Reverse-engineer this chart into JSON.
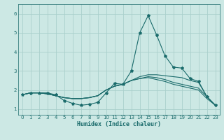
{
  "title": "",
  "xlabel": "Humidex (Indice chaleur)",
  "ylabel": "",
  "bg_color": "#cce8e4",
  "grid_color": "#aacfcb",
  "line_color": "#1a6b6b",
  "xlim": [
    -0.5,
    23.5
  ],
  "ylim": [
    0.7,
    6.5
  ],
  "xticks": [
    0,
    1,
    2,
    3,
    4,
    5,
    6,
    7,
    8,
    9,
    10,
    11,
    12,
    13,
    14,
    15,
    16,
    17,
    18,
    19,
    20,
    21,
    22,
    23
  ],
  "yticks": [
    1,
    2,
    3,
    4,
    5,
    6
  ],
  "series": [
    [
      1.75,
      1.85,
      1.85,
      1.85,
      1.75,
      1.45,
      1.3,
      1.2,
      1.25,
      1.35,
      1.85,
      2.35,
      2.3,
      3.0,
      5.0,
      5.9,
      4.9,
      3.8,
      3.2,
      3.15,
      2.6,
      2.45,
      1.65,
      1.2
    ],
    [
      1.75,
      1.85,
      1.85,
      1.8,
      1.7,
      1.6,
      1.55,
      1.55,
      1.6,
      1.7,
      2.0,
      2.2,
      2.3,
      2.5,
      2.7,
      2.8,
      2.8,
      2.75,
      2.7,
      2.65,
      2.5,
      2.4,
      1.65,
      1.2
    ],
    [
      1.75,
      1.85,
      1.85,
      1.8,
      1.7,
      1.6,
      1.55,
      1.55,
      1.6,
      1.7,
      2.0,
      2.2,
      2.3,
      2.5,
      2.6,
      2.7,
      2.65,
      2.55,
      2.4,
      2.3,
      2.2,
      2.1,
      1.65,
      1.2
    ],
    [
      1.75,
      1.85,
      1.85,
      1.8,
      1.7,
      1.6,
      1.55,
      1.55,
      1.6,
      1.7,
      2.0,
      2.2,
      2.3,
      2.5,
      2.6,
      2.65,
      2.55,
      2.45,
      2.3,
      2.2,
      2.1,
      2.0,
      1.55,
      1.2
    ]
  ]
}
